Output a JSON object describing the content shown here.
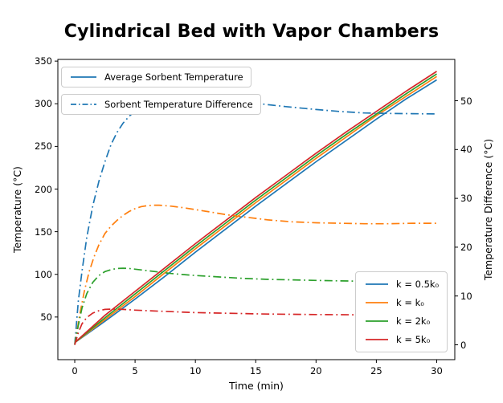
{
  "title": "Cylindrical Bed with Vapor Chambers",
  "legends": {
    "avg": {
      "label": "Average Sorbent Temperature",
      "color": "#1f77b4",
      "style": "solid"
    },
    "diff": {
      "label": "Sorbent Temperature Difference",
      "color": "#1f77b4",
      "style": "dashdot"
    },
    "k": {
      "entries": [
        {
          "label": "k = 0.5k₀",
          "color": "#1f77b4",
          "style": "solid"
        },
        {
          "label": "k = k₀",
          "color": "#ff7f0e",
          "style": "solid"
        },
        {
          "label": "k = 2k₀",
          "color": "#2ca02c",
          "style": "solid"
        },
        {
          "label": "k = 5k₀",
          "color": "#d62728",
          "style": "solid"
        }
      ]
    }
  },
  "chart_data": {
    "type": "line",
    "title": "Cylindrical Bed with Vapor Chambers",
    "grid": false,
    "axes": {
      "x": {
        "label": "Time (min)",
        "ticks": [
          0,
          5,
          10,
          15,
          20,
          25,
          30
        ],
        "range": [
          -1.4,
          31.5
        ]
      },
      "left": {
        "label": "Temperature (°C)",
        "ticks": [
          50,
          100,
          150,
          200,
          250,
          300,
          350
        ],
        "range": [
          0,
          352
        ]
      },
      "right": {
        "label": "Temperature Difference (°C)",
        "ticks": [
          0,
          10,
          20,
          30,
          40,
          50
        ],
        "range": [
          -3.04,
          58.47
        ]
      }
    },
    "series": [
      {
        "name": "Average Sorbent Temperature (k = 0.5k₀)",
        "axis": "left",
        "style": "solid",
        "color": "#1f77b4",
        "x": [
          0,
          2.5,
          5,
          7.5,
          10,
          12.5,
          15,
          17.5,
          20,
          22.5,
          25,
          27.5,
          30
        ],
        "y": [
          20,
          45,
          71,
          98,
          126,
          153,
          180,
          206,
          232,
          257,
          282,
          306,
          328
        ]
      },
      {
        "name": "Average Sorbent Temperature (k = k₀)",
        "axis": "left",
        "style": "solid",
        "color": "#ff7f0e",
        "x": [
          0,
          2.5,
          5,
          7.5,
          10,
          12.5,
          15,
          17.5,
          20,
          22.5,
          25,
          27.5,
          30
        ],
        "y": [
          20,
          47,
          74,
          102,
          130,
          157,
          184,
          210,
          236,
          261,
          286,
          309,
          332
        ]
      },
      {
        "name": "Average Sorbent Temperature (k = 2k₀)",
        "axis": "left",
        "style": "solid",
        "color": "#2ca02c",
        "x": [
          0,
          2.5,
          5,
          7.5,
          10,
          12.5,
          15,
          17.5,
          20,
          22.5,
          25,
          27.5,
          30
        ],
        "y": [
          20,
          49,
          77,
          105,
          133,
          160,
          187,
          213,
          239,
          264,
          288,
          312,
          335
        ]
      },
      {
        "name": "Average Sorbent Temperature (k = 5k₀)",
        "axis": "left",
        "style": "solid",
        "color": "#d62728",
        "x": [
          0,
          2.5,
          5,
          7.5,
          10,
          12.5,
          15,
          17.5,
          20,
          22.5,
          25,
          27.5,
          30
        ],
        "y": [
          20,
          52,
          80,
          108,
          136,
          163,
          190,
          216,
          242,
          267,
          291,
          315,
          338
        ]
      },
      {
        "name": "Sorbent Temperature Difference (k = 0.5k₀)",
        "axis": "right",
        "style": "dashdot",
        "color": "#1f77b4",
        "x": [
          0,
          0.3,
          0.6,
          1,
          1.5,
          2,
          2.5,
          3,
          3.5,
          4,
          4.5,
          5,
          6,
          7,
          8,
          9,
          10,
          12,
          14,
          16,
          17.5,
          20,
          22,
          24,
          26,
          28,
          30
        ],
        "y": [
          0,
          9,
          15,
          22,
          28.5,
          33.5,
          37.5,
          41,
          43.5,
          45.4,
          46.8,
          47.9,
          49.3,
          50.1,
          50.5,
          50.7,
          50.7,
          50.4,
          49.8,
          49.2,
          48.8,
          48.2,
          47.8,
          47.5,
          47.4,
          47.35,
          47.3
        ]
      },
      {
        "name": "Sorbent Temperature Difference (k = k₀)",
        "axis": "right",
        "style": "dashdot",
        "color": "#ff7f0e",
        "x": [
          0,
          0.4,
          0.8,
          1.2,
          1.6,
          2,
          2.5,
          3,
          3.5,
          4,
          4.5,
          5,
          5.5,
          6,
          6.5,
          7,
          8,
          9,
          10,
          11,
          12,
          13,
          14,
          15,
          16,
          17,
          18,
          19,
          20,
          22,
          24,
          26,
          28,
          30
        ],
        "y": [
          0,
          6,
          11,
          15,
          18,
          20.5,
          22.8,
          24.3,
          25.5,
          26.5,
          27.3,
          27.9,
          28.3,
          28.5,
          28.6,
          28.6,
          28.4,
          28.1,
          27.7,
          27.3,
          26.9,
          26.5,
          26.2,
          25.9,
          25.6,
          25.4,
          25.2,
          25.1,
          25,
          24.9,
          24.8,
          24.8,
          24.9,
          24.9
        ]
      },
      {
        "name": "Sorbent Temperature Difference (k = 2k₀)",
        "axis": "right",
        "style": "dashdot",
        "color": "#2ca02c",
        "x": [
          0,
          0.3,
          0.6,
          1,
          1.5,
          2,
          2.5,
          3,
          3.5,
          4,
          4.5,
          5,
          6,
          7,
          8,
          9,
          10,
          12,
          14,
          16,
          18,
          20,
          22,
          25,
          28,
          30
        ],
        "y": [
          0,
          4,
          7.5,
          10.5,
          12.8,
          14.2,
          15,
          15.4,
          15.65,
          15.7,
          15.65,
          15.5,
          15.2,
          14.9,
          14.6,
          14.4,
          14.2,
          13.9,
          13.6,
          13.4,
          13.3,
          13.2,
          13.1,
          13,
          12.95,
          12.9
        ]
      },
      {
        "name": "Sorbent Temperature Difference (k = 5k₀)",
        "axis": "right",
        "style": "dashdot",
        "color": "#d62728",
        "x": [
          0,
          0.3,
          0.6,
          1,
          1.5,
          2,
          2.5,
          3,
          3.5,
          4,
          5,
          6,
          7,
          8,
          10,
          12,
          14,
          16,
          18,
          20,
          23,
          26,
          30
        ],
        "y": [
          0,
          2.5,
          4.3,
          5.6,
          6.5,
          7,
          7.25,
          7.3,
          7.3,
          7.25,
          7.1,
          7,
          6.9,
          6.8,
          6.6,
          6.5,
          6.4,
          6.3,
          6.25,
          6.2,
          6.15,
          6.1,
          6.1
        ]
      }
    ]
  }
}
